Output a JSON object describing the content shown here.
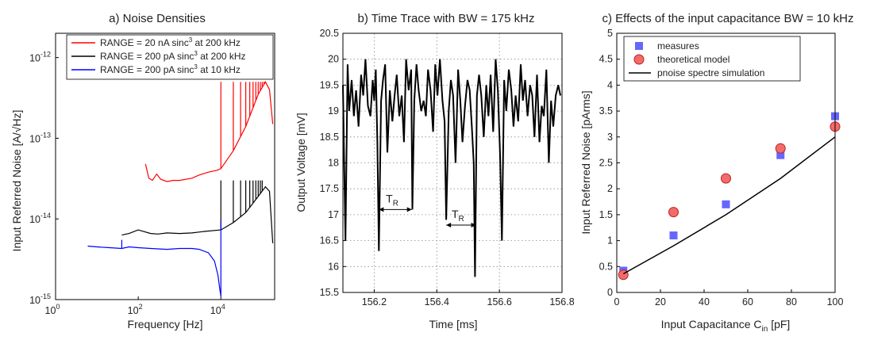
{
  "chart_data": [
    {
      "type": "line",
      "title": "a) Noise Densities",
      "xlabel": "Frequency [Hz]",
      "ylabel": "Input Referred Noise [A/√Hz]",
      "xscale": "log",
      "yscale": "log",
      "xlim": [
        1,
        200000
      ],
      "ylim": [
        1e-15,
        2e-12
      ],
      "x_ticks": [
        {
          "value": 1,
          "base": "10",
          "exp": "0"
        },
        {
          "value": 100,
          "base": "10",
          "exp": "2"
        },
        {
          "value": 10000,
          "base": "10",
          "exp": "4"
        }
      ],
      "y_ticks": [
        {
          "value": 1e-15,
          "base": "10",
          "exp": "-15"
        },
        {
          "value": 1e-14,
          "base": "10",
          "exp": "-14"
        },
        {
          "value": 1e-13,
          "base": "10",
          "exp": "-13"
        },
        {
          "value": 1e-12,
          "base": "10",
          "exp": "-12"
        }
      ],
      "legend_position": "top",
      "series": [
        {
          "name": "RANGE = 20 nA  sinc³ at 200 kHz",
          "legend_pre": "RANGE = 20 nA  sinc",
          "legend_sup": "3",
          "legend_post": " at 200 kHz",
          "color": "#ff0000",
          "x": [
            150,
            180,
            220,
            280,
            350,
            500,
            700,
            1000,
            2000,
            3000,
            5000,
            8000,
            10000,
            20000,
            40000,
            80000,
            120000,
            150000,
            180000
          ],
          "y": [
            4.8e-14,
            3.2e-14,
            3e-14,
            3.6e-14,
            3.1e-14,
            2.9e-14,
            3e-14,
            3e-14,
            3.2e-14,
            3.5e-14,
            3.8e-14,
            4e-14,
            4.2e-14,
            7e-14,
            1.4e-13,
            3.5e-13,
            5e-13,
            4e-13,
            1.5e-13
          ],
          "spikes": {
            "x": [
              10000,
              20000,
              30000,
              40000,
              50000,
              60000,
              70000,
              80000,
              90000,
              100000,
              110000
            ],
            "y": 5e-13
          }
        },
        {
          "name": "RANGE = 200 pA sinc³ at 200 kHz",
          "legend_pre": "RANGE = 200 pA sinc",
          "legend_sup": "3",
          "legend_post": " at 200 kHz",
          "color": "#000000",
          "x": [
            40,
            60,
            100,
            200,
            300,
            500,
            1000,
            2000,
            4000,
            10000,
            20000,
            40000,
            80000,
            120000,
            150000,
            180000
          ],
          "y": [
            6.3e-15,
            6.6e-15,
            7.3e-15,
            6.6e-15,
            6.5e-15,
            6.7e-15,
            6.6e-15,
            6.7e-15,
            7e-15,
            7.3e-15,
            9e-15,
            1.2e-14,
            1.9e-14,
            2.5e-14,
            2.2e-14,
            5e-15
          ],
          "spikes": {
            "x": [
              10000,
              20000,
              30000,
              40000,
              50000,
              60000,
              70000,
              80000,
              90000,
              100000
            ],
            "y": 3e-14
          }
        },
        {
          "name": "RANGE = 200 pA sinc³ at 10 kHz",
          "legend_pre": "RANGE = 200 pA sinc",
          "legend_sup": "3",
          "legend_post": " at 10 kHz",
          "color": "#0000ff",
          "x": [
            6,
            10,
            20,
            40,
            60,
            100,
            200,
            500,
            1000,
            2000,
            3000,
            5000,
            7000,
            8500,
            9500,
            10000
          ],
          "y": [
            4.6e-15,
            4.5e-15,
            4.4e-15,
            4.3e-15,
            4.5e-15,
            4.4e-15,
            4.3e-15,
            4.2e-15,
            4.3e-15,
            4.3e-15,
            4.2e-15,
            3.8e-15,
            3e-15,
            2e-15,
            1.3e-15,
            1.1e-15
          ],
          "spikes": {
            "x": [
              40,
              10000
            ],
            "y": [
              5.5e-15,
              9.5e-15
            ]
          }
        }
      ]
    },
    {
      "type": "line",
      "title": "b) Time Trace with BW = 175 kHz",
      "xlabel": "Time [ms]",
      "ylabel": "Output Voltage [mV]",
      "xlim": [
        156.1,
        156.8
      ],
      "ylim": [
        15.5,
        20.5
      ],
      "x_ticks": [
        "156.2",
        "156.4",
        "156.6",
        "156.8"
      ],
      "y_ticks": [
        "15.5",
        "16",
        "16.5",
        "17",
        "17.5",
        "18",
        "18.5",
        "19",
        "19.5",
        "20",
        "20.5"
      ],
      "grid": true,
      "color": "#000000",
      "annotations": [
        {
          "text": "T",
          "sub": "R",
          "x1": 156.215,
          "x2": 156.32,
          "y": 17.1
        },
        {
          "text": "T",
          "sub": "R",
          "x1": 156.43,
          "x2": 156.525,
          "y": 16.8
        }
      ],
      "x": [
        156.1,
        156.108,
        156.115,
        156.12,
        156.128,
        156.135,
        156.142,
        156.15,
        156.158,
        156.165,
        156.172,
        156.18,
        156.188,
        156.195,
        156.2,
        156.205,
        156.21,
        156.215,
        156.222,
        156.228,
        156.235,
        156.242,
        156.25,
        156.258,
        156.265,
        156.272,
        156.28,
        156.288,
        156.295,
        156.302,
        156.31,
        156.318,
        156.322,
        156.328,
        156.335,
        156.342,
        156.35,
        156.358,
        156.365,
        156.372,
        156.38,
        156.388,
        156.395,
        156.402,
        156.41,
        156.418,
        156.425,
        156.43,
        156.438,
        156.445,
        156.452,
        156.46,
        156.468,
        156.475,
        156.482,
        156.49,
        156.498,
        156.505,
        156.512,
        156.518,
        156.522,
        156.528,
        156.535,
        156.542,
        156.55,
        156.558,
        156.565,
        156.572,
        156.58,
        156.588,
        156.595,
        156.602,
        156.608,
        156.615,
        156.622,
        156.63,
        156.638,
        156.645,
        156.652,
        156.66,
        156.668,
        156.675,
        156.682,
        156.69,
        156.698,
        156.705,
        156.712,
        156.72,
        156.728,
        156.735,
        156.742,
        156.75,
        156.758,
        156.765,
        156.772,
        156.78,
        156.788,
        156.795
      ],
      "y": [
        19.5,
        16.5,
        19.9,
        19.0,
        19.6,
        18.9,
        19.4,
        18.7,
        19.7,
        19.3,
        20.0,
        19.1,
        18.9,
        19.6,
        19.2,
        19.8,
        18.4,
        16.3,
        19.2,
        19.6,
        19.9,
        18.2,
        19.4,
        18.8,
        19.3,
        19.7,
        18.9,
        19.3,
        18.4,
        20.0,
        19.4,
        19.8,
        17.1,
        19.2,
        19.9,
        19.4,
        19.0,
        19.2,
        18.9,
        19.8,
        19.4,
        18.6,
        19.9,
        19.3,
        20.0,
        19.2,
        18.8,
        16.9,
        19.0,
        19.6,
        19.3,
        18.0,
        19.8,
        19.2,
        18.4,
        19.1,
        19.6,
        19.4,
        18.7,
        18.0,
        15.8,
        19.3,
        19.7,
        19.3,
        18.5,
        19.5,
        18.9,
        19.7,
        18.6,
        20.0,
        19.4,
        18.2,
        16.5,
        19.6,
        19.0,
        19.8,
        19.4,
        18.7,
        19.3,
        18.8,
        19.9,
        19.2,
        19.6,
        18.9,
        19.5,
        19.3,
        18.5,
        19.7,
        18.4,
        19.1,
        18.9,
        19.8,
        18.0,
        19.2,
        18.7,
        19.3,
        19.5,
        19.3
      ]
    },
    {
      "type": "scatter",
      "title": "c) Effects of the input capacitance BW = 10 kHz",
      "xlabel_main": "Input Capacitance C",
      "xlabel_sub": "in",
      "xlabel_post": " [pF]",
      "xlabel": "Input Capacitance C_in [pF]",
      "ylabel": "Input Referred Noise [pArms]",
      "xlim": [
        0,
        100
      ],
      "ylim": [
        0,
        5
      ],
      "x_ticks": [
        "0",
        "20",
        "40",
        "60",
        "80",
        "100"
      ],
      "y_ticks": [
        "0",
        "0.5",
        "1",
        "1.5",
        "2",
        "2.5",
        "3",
        "3.5",
        "4",
        "4.5",
        "5"
      ],
      "legend_position": "top-left",
      "series": [
        {
          "name": "measures",
          "marker": "square",
          "color": "#6666ff",
          "x": [
            3,
            26,
            50,
            75,
            100
          ],
          "y": [
            0.42,
            1.1,
            1.7,
            2.65,
            3.4
          ]
        },
        {
          "name": "theoretical model",
          "marker": "circle",
          "color": "#f26b6b",
          "x": [
            3,
            26,
            50,
            75,
            100
          ],
          "y": [
            0.34,
            1.55,
            2.2,
            2.78,
            3.2
          ]
        },
        {
          "name": "pnoise spectre simulation",
          "marker": "line",
          "color": "#000000",
          "x": [
            3,
            26,
            50,
            75,
            100
          ],
          "y": [
            0.36,
            0.9,
            1.5,
            2.2,
            3.0
          ]
        }
      ]
    }
  ]
}
